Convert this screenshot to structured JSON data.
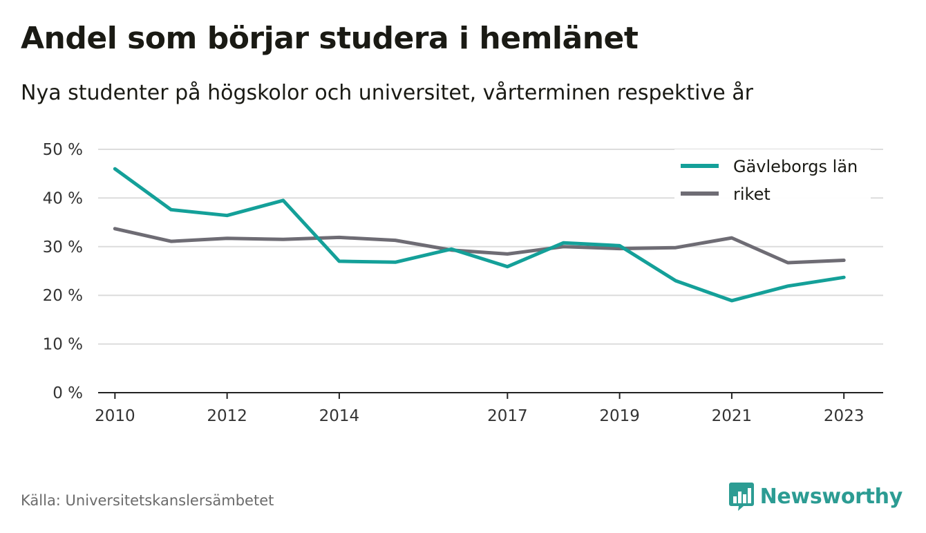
{
  "header": {
    "title": "Andel som börjar studera i hemlänet",
    "subtitle": "Nya studenter på högskolor och universitet, vårterminen respektive år"
  },
  "footer": {
    "source": "Källa: Universitetskanslersämbetet",
    "brand": "Newsworthy",
    "brand_icon": "bar-chart-speech-bubble-icon"
  },
  "colors": {
    "series_1": "#14a099",
    "series_2": "#6e6c74",
    "grid": "#dcdcdc",
    "brand": "#2c9c93"
  },
  "chart_data": {
    "type": "line",
    "x": [
      2010,
      2011,
      2012,
      2013,
      2014,
      2015,
      2016,
      2017,
      2018,
      2019,
      2020,
      2021,
      2022,
      2023
    ],
    "x_tick_labels": [
      "2010",
      "2012",
      "2014",
      "2017",
      "2019",
      "2021",
      "2023"
    ],
    "y_tick_labels": [
      "0 %",
      "10 %",
      "20 %",
      "30 %",
      "40 %",
      "50 %"
    ],
    "y_ticks": [
      0,
      10,
      20,
      30,
      40,
      50
    ],
    "ylim": [
      0,
      50
    ],
    "xlim": [
      2009.7,
      2023.7
    ],
    "grid": true,
    "legend_position": "top-right",
    "series": [
      {
        "name": "Gävleborgs län",
        "values": [
          46.0,
          37.6,
          36.4,
          39.5,
          27.0,
          26.8,
          29.5,
          25.9,
          30.8,
          30.2,
          23.0,
          18.9,
          21.9,
          23.7
        ]
      },
      {
        "name": "riket",
        "values": [
          33.7,
          31.1,
          31.7,
          31.5,
          31.9,
          31.3,
          29.3,
          28.5,
          30.0,
          29.6,
          29.8,
          31.8,
          26.7,
          27.2
        ]
      }
    ]
  }
}
